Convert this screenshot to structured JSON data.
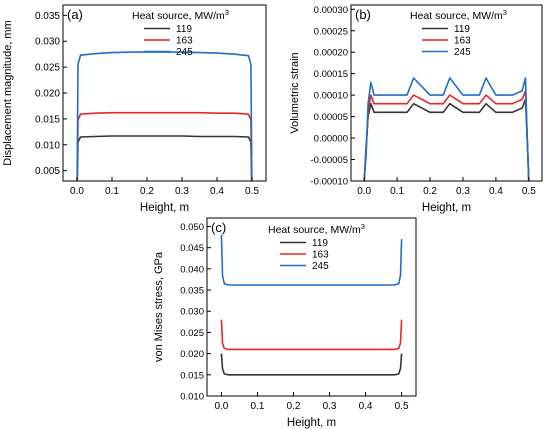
{
  "chart_data": [
    {
      "type": "line",
      "panel_label": "(a)",
      "xlabel": "Height, m",
      "ylabel": "Displacement magnitude, mm",
      "xlim": [
        -0.04,
        0.54
      ],
      "ylim": [
        0.003,
        0.037
      ],
      "xticks": [
        0.0,
        0.1,
        0.2,
        0.3,
        0.4,
        0.5
      ],
      "xtick_labels": [
        "0.0",
        "0.1",
        "0.2",
        "0.3",
        "0.4",
        "0.5"
      ],
      "yticks": [
        0.005,
        0.01,
        0.015,
        0.02,
        0.025,
        0.03,
        0.035
      ],
      "ytick_labels": [
        "0.005",
        "0.010",
        "0.015",
        "0.020",
        "0.025",
        "0.030",
        "0.035"
      ],
      "legend_title": "Heat source, MW/m",
      "legend_title_sup": "3",
      "legend_position": "top-center",
      "grid": false,
      "series": [
        {
          "name": "119",
          "color": "#333333",
          "x": [
            0.0,
            0.003,
            0.01,
            0.05,
            0.1,
            0.15,
            0.2,
            0.25,
            0.3,
            0.35,
            0.4,
            0.45,
            0.49,
            0.497,
            0.5
          ],
          "y": [
            0.0,
            0.0105,
            0.0115,
            0.0116,
            0.0117,
            0.0117,
            0.0117,
            0.0117,
            0.0117,
            0.0116,
            0.0116,
            0.0116,
            0.0115,
            0.0105,
            0.0
          ]
        },
        {
          "name": "163",
          "color": "#e8262a",
          "x": [
            0.0,
            0.003,
            0.01,
            0.05,
            0.1,
            0.15,
            0.2,
            0.25,
            0.3,
            0.35,
            0.4,
            0.45,
            0.49,
            0.497,
            0.5
          ],
          "y": [
            0.0,
            0.0148,
            0.0159,
            0.0161,
            0.0162,
            0.0162,
            0.0162,
            0.0162,
            0.0162,
            0.0162,
            0.0161,
            0.0161,
            0.0159,
            0.0148,
            0.0
          ]
        },
        {
          "name": "245",
          "color": "#1f6fc5",
          "x": [
            0.0,
            0.003,
            0.01,
            0.05,
            0.1,
            0.15,
            0.2,
            0.25,
            0.3,
            0.35,
            0.4,
            0.45,
            0.49,
            0.497,
            0.5
          ],
          "y": [
            0.0,
            0.0255,
            0.0273,
            0.0276,
            0.0278,
            0.0279,
            0.0279,
            0.0279,
            0.0279,
            0.0278,
            0.0277,
            0.0275,
            0.0272,
            0.0255,
            0.0
          ]
        }
      ]
    },
    {
      "type": "line",
      "panel_label": "(b)",
      "xlabel": "Height, m",
      "ylabel": "Volumetric strain",
      "xlim": [
        -0.04,
        0.54
      ],
      "ylim": [
        -0.0001,
        0.00031
      ],
      "xticks": [
        0.0,
        0.1,
        0.2,
        0.3,
        0.4,
        0.5
      ],
      "xtick_labels": [
        "0.0",
        "0.1",
        "0.2",
        "0.3",
        "0.4",
        "0.5"
      ],
      "yticks": [
        -0.0001,
        -5e-05,
        0.0,
        5e-05,
        0.0001,
        0.00015,
        0.0002,
        0.00025,
        0.0003
      ],
      "ytick_labels": [
        "-0.00010",
        "-0.00005",
        "0.00000",
        "0.00005",
        "0.00010",
        "0.00015",
        "0.00020",
        "0.00025",
        "0.00030"
      ],
      "legend_title": "Heat source, MW/m",
      "legend_title_sup": "3",
      "legend_position": "top-right",
      "grid": false,
      "series": [
        {
          "name": "119",
          "color": "#333333",
          "x": [
            0.0,
            0.006,
            0.012,
            0.02,
            0.03,
            0.06,
            0.1,
            0.13,
            0.15,
            0.2,
            0.24,
            0.26,
            0.3,
            0.35,
            0.37,
            0.4,
            0.45,
            0.48,
            0.49,
            0.495,
            0.5
          ],
          "y": [
            -0.0001,
            -2e-05,
            5e-05,
            8e-05,
            6e-05,
            6e-05,
            6e-05,
            6e-05,
            8e-05,
            6e-05,
            6e-05,
            8e-05,
            6e-05,
            6e-05,
            8e-05,
            6e-05,
            6e-05,
            7e-05,
            9e-05,
            0.0,
            -0.0001
          ]
        },
        {
          "name": "163",
          "color": "#e8262a",
          "x": [
            0.0,
            0.006,
            0.012,
            0.02,
            0.03,
            0.06,
            0.1,
            0.13,
            0.15,
            0.2,
            0.24,
            0.26,
            0.3,
            0.35,
            0.37,
            0.4,
            0.45,
            0.48,
            0.49,
            0.495,
            0.5
          ],
          "y": [
            -0.0001,
            -3e-05,
            6e-05,
            0.0001,
            8e-05,
            8e-05,
            8e-05,
            8e-05,
            0.0001,
            8e-05,
            8e-05,
            0.0001,
            8e-05,
            8e-05,
            0.0001,
            8e-05,
            8e-05,
            9e-05,
            0.00011,
            0.0,
            -0.0001
          ]
        },
        {
          "name": "245",
          "color": "#1f6fc5",
          "x": [
            0.0,
            0.006,
            0.012,
            0.02,
            0.03,
            0.06,
            0.1,
            0.13,
            0.15,
            0.2,
            0.24,
            0.26,
            0.3,
            0.35,
            0.37,
            0.4,
            0.45,
            0.48,
            0.49,
            0.495,
            0.5
          ],
          "y": [
            -0.0001,
            -4e-05,
            8e-05,
            0.00013,
            0.0001,
            0.0001,
            0.0001,
            0.0001,
            0.00014,
            0.0001,
            0.0001,
            0.00014,
            0.0001,
            0.0001,
            0.00014,
            0.0001,
            0.0001,
            0.00011,
            0.00014,
            0.0,
            -0.0001
          ]
        }
      ]
    },
    {
      "type": "line",
      "panel_label": "(c)",
      "xlabel": "Height, m",
      "ylabel": "von Mises stress, GPa",
      "xlim": [
        -0.04,
        0.54
      ],
      "ylim": [
        0.01,
        0.052
      ],
      "xticks": [
        0.0,
        0.1,
        0.2,
        0.3,
        0.4,
        0.5
      ],
      "xtick_labels": [
        "0.0",
        "0.1",
        "0.2",
        "0.3",
        "0.4",
        "0.5"
      ],
      "yticks": [
        0.01,
        0.015,
        0.02,
        0.025,
        0.03,
        0.035,
        0.04,
        0.045,
        0.05
      ],
      "ytick_labels": [
        "0.010",
        "0.015",
        "0.020",
        "0.025",
        "0.030",
        "0.035",
        "0.040",
        "0.045",
        "0.050"
      ],
      "legend_title": "Heat source, MW/m",
      "legend_title_sup": "3",
      "legend_position": "top-right",
      "grid": false,
      "series": [
        {
          "name": "119",
          "color": "#333333",
          "x": [
            0.0,
            0.003,
            0.008,
            0.02,
            0.1,
            0.2,
            0.3,
            0.4,
            0.48,
            0.492,
            0.497,
            0.5
          ],
          "y": [
            0.02,
            0.0165,
            0.0152,
            0.015,
            0.015,
            0.015,
            0.015,
            0.015,
            0.015,
            0.0152,
            0.0165,
            0.02
          ]
        },
        {
          "name": "163",
          "color": "#e8262a",
          "x": [
            0.0,
            0.003,
            0.008,
            0.02,
            0.1,
            0.2,
            0.3,
            0.4,
            0.48,
            0.492,
            0.497,
            0.5
          ],
          "y": [
            0.028,
            0.0225,
            0.0212,
            0.021,
            0.021,
            0.021,
            0.021,
            0.021,
            0.021,
            0.0212,
            0.0225,
            0.028
          ]
        },
        {
          "name": "245",
          "color": "#1f6fc5",
          "x": [
            0.0,
            0.003,
            0.008,
            0.02,
            0.1,
            0.2,
            0.3,
            0.4,
            0.48,
            0.492,
            0.497,
            0.5
          ],
          "y": [
            0.048,
            0.0385,
            0.0365,
            0.0362,
            0.0362,
            0.0362,
            0.0362,
            0.0362,
            0.0362,
            0.0365,
            0.0385,
            0.047
          ]
        }
      ]
    }
  ]
}
